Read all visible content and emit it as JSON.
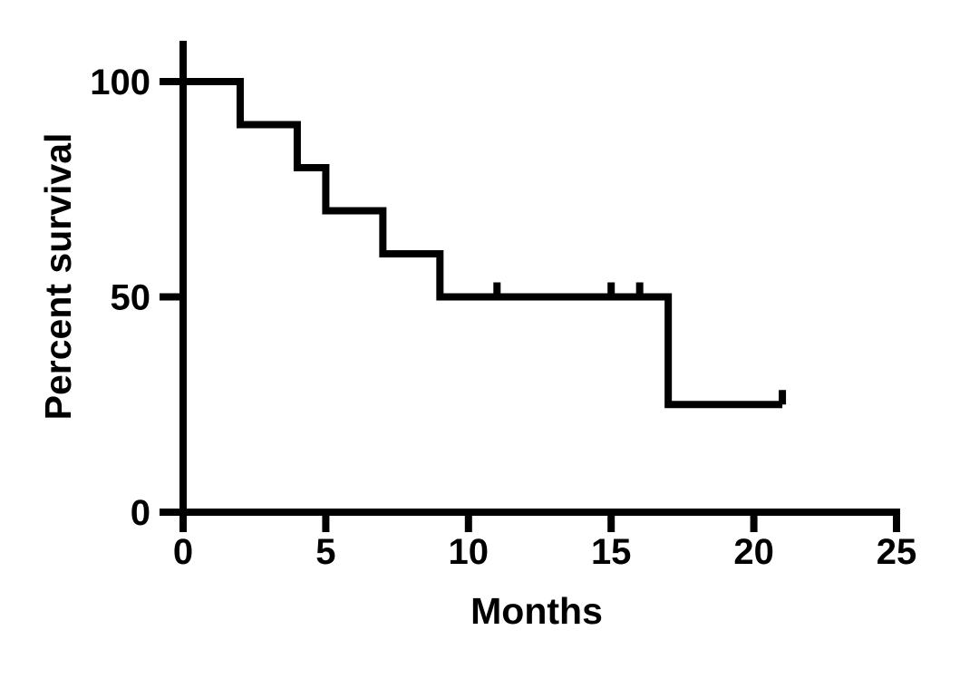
{
  "chart_data": {
    "type": "line",
    "chart_style": "kaplan-meier-survival-step",
    "title": "",
    "xlabel": "Months",
    "ylabel": "Percent survival",
    "xlim": [
      0,
      25
    ],
    "ylim": [
      0,
      100
    ],
    "x_ticks": [
      0,
      5,
      10,
      15,
      20,
      25
    ],
    "y_ticks": [
      100,
      50,
      0
    ],
    "grid": false,
    "legend": false,
    "line_color": "#000000",
    "background_color": "#ffffff",
    "series": [
      {
        "name": "Percent survival",
        "step_points": [
          [
            0,
            100
          ],
          [
            2,
            100
          ],
          [
            2,
            90
          ],
          [
            4,
            90
          ],
          [
            4,
            80
          ],
          [
            5,
            80
          ],
          [
            5,
            70
          ],
          [
            7,
            70
          ],
          [
            7,
            60
          ],
          [
            9,
            60
          ],
          [
            9,
            50
          ],
          [
            17,
            50
          ],
          [
            17,
            25
          ],
          [
            21,
            25
          ]
        ],
        "censor_marks": [
          [
            11,
            50
          ],
          [
            15,
            50
          ],
          [
            16,
            50
          ],
          [
            21,
            25
          ]
        ]
      }
    ]
  }
}
